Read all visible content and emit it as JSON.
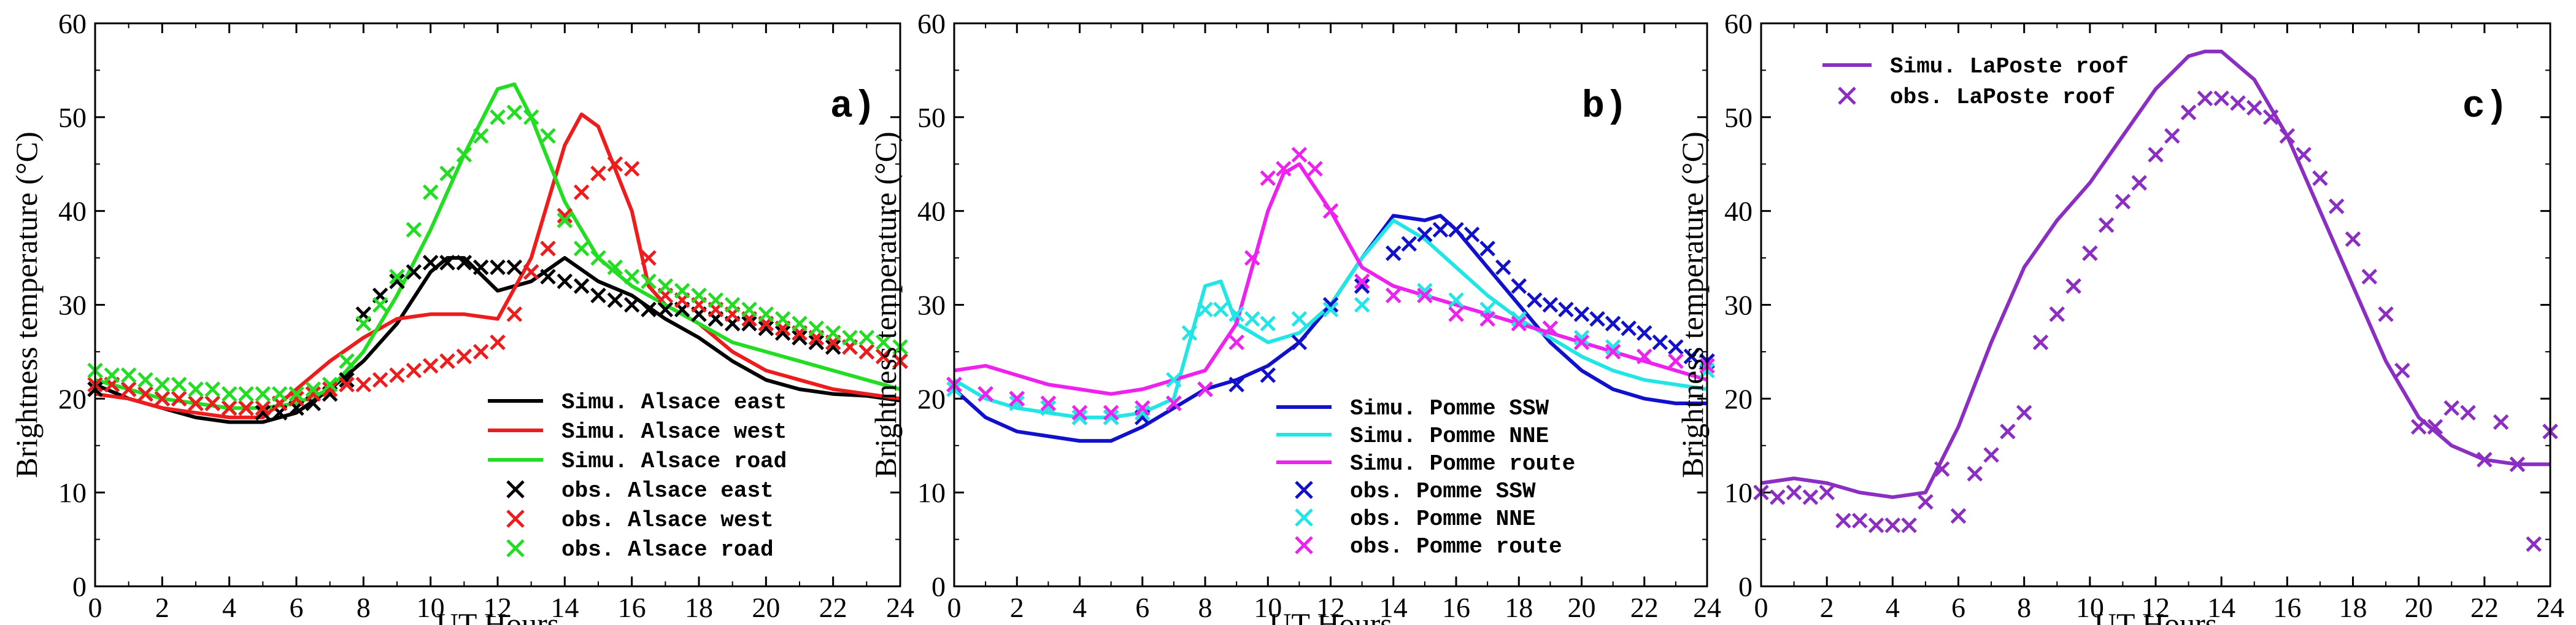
{
  "colors": {
    "black": "#000000",
    "red": "#ee1c1c",
    "green": "#22dd22",
    "blue": "#1111cc",
    "cyan": "#22e5e5",
    "magenta": "#ee22ee",
    "purple": "#8a2fc2"
  },
  "chart_data": [
    {
      "type": "line",
      "panel": "a)",
      "xlabel": "UT Hours",
      "ylabel": "Brightness temperature (°C)",
      "xlim": [
        0,
        24
      ],
      "ylim": [
        0,
        60
      ],
      "xticks": [
        0,
        2,
        4,
        6,
        8,
        10,
        12,
        14,
        16,
        18,
        20,
        22,
        24
      ],
      "yticks": [
        0,
        10,
        20,
        30,
        40,
        50,
        60
      ],
      "legend_position": "bottom-right",
      "series": [
        {
          "name": "Simu. Alsace east",
          "kind": "line",
          "color": "#000000",
          "x": [
            0,
            1,
            2,
            3,
            4,
            5,
            6,
            7,
            8,
            9,
            10,
            10.5,
            11,
            12,
            13,
            14,
            15,
            16,
            17,
            18,
            19,
            20,
            21,
            22,
            23,
            24
          ],
          "y": [
            21.5,
            20,
            19,
            18,
            17.5,
            17.5,
            18.5,
            21,
            24,
            28,
            33.5,
            35,
            35,
            31.5,
            32.5,
            35,
            32.5,
            31,
            28.5,
            26.5,
            24,
            22,
            21,
            20.5,
            20.3,
            19.8
          ]
        },
        {
          "name": "Simu. Alsace west",
          "kind": "line",
          "color": "#ee1c1c",
          "x": [
            0,
            1,
            2,
            3,
            4,
            5,
            6,
            7,
            8,
            9,
            10,
            11,
            12,
            13,
            14,
            14.5,
            15,
            16,
            16.5,
            17,
            18,
            19,
            20,
            21,
            22,
            23,
            24
          ],
          "y": [
            20.5,
            20,
            19,
            18.5,
            18,
            18,
            21,
            24,
            26.5,
            28.5,
            29,
            29,
            28.5,
            35,
            47,
            50.3,
            49,
            40,
            32,
            30,
            28,
            25,
            23,
            22,
            21,
            20.5,
            20
          ]
        },
        {
          "name": "Simu. Alsace road",
          "kind": "line",
          "color": "#22dd22",
          "x": [
            0,
            1,
            2,
            3,
            4,
            5,
            6,
            7,
            8,
            9,
            10,
            11,
            12,
            12.5,
            13,
            14,
            15,
            16,
            17,
            18,
            19,
            20,
            21,
            22,
            23,
            24
          ],
          "y": [
            22,
            21,
            20,
            19.5,
            19,
            19,
            19.5,
            21,
            25,
            31,
            38,
            46,
            53,
            53.5,
            50,
            41,
            35,
            32,
            30,
            28,
            26,
            25,
            24,
            23,
            22,
            21
          ]
        },
        {
          "name": "obs. Alsace east",
          "kind": "scatter",
          "color": "#000000",
          "x": [
            0,
            0.5,
            1,
            1.5,
            2,
            2.5,
            3,
            3.5,
            4,
            4.5,
            5,
            5.5,
            6,
            6.5,
            7,
            7.5,
            8,
            8.5,
            9,
            9.5,
            10,
            10.5,
            11,
            11.5,
            12,
            12.5,
            13,
            13.5,
            14,
            14.5,
            15,
            15.5,
            16,
            16.5,
            17,
            17.5,
            18,
            18.5,
            19,
            19.5,
            20,
            20.5,
            21,
            21.5,
            22,
            22.5,
            23,
            23.5,
            24
          ],
          "y": [
            21,
            21.5,
            21,
            20.5,
            20,
            20,
            19.5,
            19.5,
            19,
            19,
            18.5,
            18.5,
            19,
            19.5,
            20.5,
            22,
            29,
            31,
            32.5,
            33.5,
            34.5,
            34.5,
            34.5,
            34,
            34,
            34,
            33.5,
            33,
            32.5,
            32,
            31,
            30.5,
            30,
            29.5,
            29.5,
            29.5,
            29,
            28.5,
            28,
            28,
            27.5,
            27,
            26.5,
            26,
            25.5,
            25.5,
            25,
            24.5,
            24
          ]
        },
        {
          "name": "obs. Alsace west",
          "kind": "scatter",
          "color": "#ee1c1c",
          "x": [
            0,
            0.5,
            1,
            1.5,
            2,
            2.5,
            3,
            3.5,
            4,
            4.5,
            5,
            5.5,
            6,
            6.5,
            7,
            7.5,
            8,
            8.5,
            9,
            9.5,
            10,
            10.5,
            11,
            11.5,
            12,
            12.5,
            13,
            13.5,
            14,
            14.5,
            15,
            15.5,
            16,
            16.5,
            17,
            17.5,
            18,
            18.5,
            19,
            19.5,
            20,
            20.5,
            21,
            21.5,
            22,
            22.5,
            23,
            23.5,
            24
          ],
          "y": [
            21.5,
            21.5,
            21,
            20.5,
            20,
            20,
            19.5,
            19.5,
            19,
            19,
            19,
            19.5,
            20,
            20.5,
            21,
            21.5,
            21.5,
            22,
            22.5,
            23,
            23.5,
            24,
            24.5,
            25,
            26,
            29,
            33.5,
            36,
            39.5,
            42,
            44,
            45,
            44.5,
            35,
            31,
            30.5,
            30,
            29.5,
            29,
            28.5,
            28,
            27.5,
            27,
            26.5,
            26,
            25.5,
            25,
            24.5,
            24
          ]
        },
        {
          "name": "obs. Alsace road",
          "kind": "scatter",
          "color": "#22dd22",
          "x": [
            0,
            0.5,
            1,
            1.5,
            2,
            2.5,
            3,
            3.5,
            4,
            4.5,
            5,
            5.5,
            6,
            6.5,
            7,
            7.5,
            8,
            8.5,
            9,
            9.5,
            10,
            10.5,
            11,
            11.5,
            12,
            12.5,
            13,
            13.5,
            14,
            14.5,
            15,
            15.5,
            16,
            16.5,
            17,
            17.5,
            18,
            18.5,
            19,
            19.5,
            20,
            20.5,
            21,
            21.5,
            22,
            22.5,
            23,
            23.5,
            24
          ],
          "y": [
            23,
            22.5,
            22.5,
            22,
            21.5,
            21.5,
            21,
            21,
            20.5,
            20.5,
            20.5,
            20.5,
            20.5,
            21,
            21.5,
            24,
            28,
            30,
            33,
            38,
            42,
            44,
            46,
            48,
            50,
            50.5,
            50,
            48,
            39,
            36,
            35,
            34,
            33,
            32.5,
            32,
            31.5,
            31,
            30.5,
            30,
            29.5,
            29,
            28.5,
            28,
            27.5,
            27,
            26.5,
            26.5,
            26,
            25.5
          ]
        }
      ]
    },
    {
      "type": "line",
      "panel": "b)",
      "xlabel": "UT Hours",
      "ylabel": "Brightness temperature (°C)",
      "xlim": [
        0,
        24
      ],
      "ylim": [
        0,
        60
      ],
      "xticks": [
        0,
        2,
        4,
        6,
        8,
        10,
        12,
        14,
        16,
        18,
        20,
        22,
        24
      ],
      "yticks": [
        0,
        10,
        20,
        30,
        40,
        50,
        60
      ],
      "legend_position": "bottom-center",
      "series": [
        {
          "name": "Simu. Pomme SSW",
          "kind": "line",
          "color": "#1111cc",
          "x": [
            0,
            1,
            2,
            3,
            4,
            5,
            6,
            7,
            8,
            9,
            10,
            11,
            12,
            13,
            14,
            15,
            15.5,
            16,
            17,
            18,
            19,
            20,
            21,
            22,
            23,
            24
          ],
          "y": [
            21,
            18,
            16.5,
            16,
            15.5,
            15.5,
            17,
            19,
            21,
            22,
            23.5,
            26,
            30,
            35,
            39.5,
            39,
            39.5,
            38,
            34,
            30,
            26,
            23,
            21,
            20,
            19.5,
            19.5
          ]
        },
        {
          "name": "Simu. Pomme NNE",
          "kind": "line",
          "color": "#22e5e5",
          "x": [
            0,
            1,
            2,
            3,
            4,
            5,
            6,
            7,
            7.5,
            8,
            8.5,
            9,
            10,
            11,
            12,
            13,
            14,
            15,
            16,
            17,
            18,
            19,
            20,
            21,
            22,
            23,
            24
          ],
          "y": [
            22,
            20,
            19,
            18.5,
            18,
            18,
            18.5,
            20,
            26,
            32,
            32.5,
            28,
            26,
            27,
            30,
            35,
            39,
            37,
            34,
            31,
            28.5,
            26.5,
            24.5,
            23,
            22,
            21.5,
            21
          ]
        },
        {
          "name": "Simu. Pomme route",
          "kind": "line",
          "color": "#ee22ee",
          "x": [
            0,
            1,
            2,
            3,
            4,
            5,
            6,
            7,
            8,
            9,
            10,
            10.5,
            11,
            12,
            13,
            14,
            15,
            16,
            17,
            18,
            19,
            20,
            21,
            22,
            23,
            24
          ],
          "y": [
            23,
            23.5,
            22.5,
            21.5,
            21,
            20.5,
            21,
            22,
            23,
            28,
            40,
            44,
            45,
            40,
            34,
            32,
            31,
            30,
            29,
            28,
            27,
            26,
            25,
            24,
            23,
            22
          ]
        },
        {
          "name": "obs. Pomme SSW",
          "kind": "scatter",
          "color": "#1111cc",
          "x": [
            0,
            1,
            2,
            3,
            4,
            5,
            6,
            7,
            8,
            9,
            10,
            11,
            12,
            13,
            14,
            14.5,
            15,
            15.5,
            16,
            16.5,
            17,
            17.5,
            18,
            18.5,
            19,
            19.5,
            20,
            20.5,
            21,
            21.5,
            22,
            22.5,
            23,
            23.5,
            24
          ],
          "y": [
            21.5,
            20.5,
            20,
            19,
            18,
            18,
            18,
            19.5,
            21,
            21.5,
            22.5,
            26,
            30,
            32,
            35.5,
            36.5,
            37.5,
            38,
            38,
            37.5,
            36,
            34,
            32,
            30.5,
            30,
            29.5,
            29,
            28.5,
            28,
            27.5,
            27,
            26,
            25.5,
            24.5,
            24
          ]
        },
        {
          "name": "obs. Pomme NNE",
          "kind": "scatter",
          "color": "#22e5e5",
          "x": [
            0,
            1,
            2,
            3,
            4,
            5,
            6,
            7,
            7.5,
            8,
            8.5,
            9,
            9.5,
            10,
            11,
            12,
            13,
            14,
            15,
            16,
            17,
            18,
            19,
            20,
            21,
            22,
            23,
            24
          ],
          "y": [
            21,
            20.5,
            19.5,
            19,
            18,
            18,
            18.5,
            22,
            27,
            29.5,
            29.5,
            29,
            28.5,
            28,
            28.5,
            29.5,
            30,
            31,
            31.5,
            30.5,
            29.5,
            28.5,
            27.5,
            26.5,
            25.5,
            24.5,
            24,
            23
          ]
        },
        {
          "name": "obs. Pomme route",
          "kind": "scatter",
          "color": "#ee22ee",
          "x": [
            0,
            1,
            2,
            3,
            4,
            5,
            6,
            7,
            8,
            9,
            9.5,
            10,
            10.5,
            11,
            11.5,
            12,
            13,
            14,
            15,
            16,
            17,
            18,
            19,
            20,
            21,
            22,
            23,
            24
          ],
          "y": [
            21.5,
            20.5,
            20,
            19.5,
            18.5,
            18.5,
            19,
            19.5,
            21,
            26,
            35,
            43.5,
            44.5,
            46,
            44.5,
            40,
            32.5,
            31,
            31,
            29,
            28.5,
            28,
            27.5,
            26,
            25,
            24.5,
            24,
            23.5
          ]
        }
      ]
    },
    {
      "type": "line",
      "panel": "c)",
      "xlabel": "UT Hours",
      "ylabel": "Brightness temperature (°C)",
      "xlim": [
        0,
        24
      ],
      "ylim": [
        0,
        60
      ],
      "xticks": [
        0,
        2,
        4,
        6,
        8,
        10,
        12,
        14,
        16,
        18,
        20,
        22,
        24
      ],
      "yticks": [
        0,
        10,
        20,
        30,
        40,
        50,
        60
      ],
      "legend_position": "top-left",
      "series": [
        {
          "name": "Simu. LaPoste roof",
          "kind": "line",
          "color": "#8a2fc2",
          "x": [
            0,
            1,
            2,
            3,
            4,
            5,
            6,
            7,
            8,
            9,
            10,
            11,
            12,
            13,
            13.5,
            14,
            15,
            16,
            17,
            18,
            19,
            20,
            21,
            22,
            23,
            24
          ],
          "y": [
            11,
            11.5,
            11,
            10,
            9.5,
            10,
            17,
            26,
            34,
            39,
            43,
            48,
            53,
            56.5,
            57,
            57,
            54,
            48,
            40,
            32,
            24,
            18,
            15,
            13.5,
            13,
            13
          ]
        },
        {
          "name": "obs. LaPoste roof",
          "kind": "scatter",
          "color": "#8a2fc2",
          "x": [
            0,
            0.5,
            1,
            1.5,
            2,
            2.5,
            3,
            3.5,
            4,
            4.5,
            5,
            5.5,
            6,
            6.5,
            7,
            7.5,
            8,
            8.5,
            9,
            9.5,
            10,
            10.5,
            11,
            11.5,
            12,
            12.5,
            13,
            13.5,
            14,
            14.5,
            15,
            15.5,
            16,
            16.5,
            17,
            17.5,
            18,
            18.5,
            19,
            19.5,
            20,
            20.5,
            21,
            21.5,
            22,
            22.5,
            23,
            23.5,
            24
          ],
          "y": [
            10,
            9.5,
            10,
            9.5,
            10,
            7,
            7,
            6.5,
            6.5,
            6.5,
            9,
            12.5,
            7.5,
            12,
            14,
            16.5,
            18.5,
            26,
            29,
            32,
            35.5,
            38.5,
            41,
            43,
            46,
            48,
            50.5,
            52,
            52,
            51.5,
            51,
            50,
            48,
            46,
            43.5,
            40.5,
            37,
            33,
            29,
            23,
            17,
            17,
            19,
            18.5,
            13.5,
            17.5,
            13,
            4.5,
            16.5
          ]
        }
      ]
    }
  ]
}
